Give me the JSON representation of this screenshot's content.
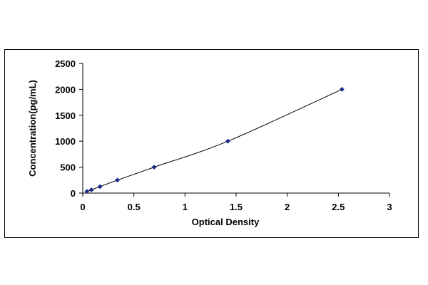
{
  "chart_data": {
    "type": "scatter",
    "title": "",
    "xlabel": "Optical Density",
    "ylabel": "Concentration(pg/mL)",
    "xlim": [
      0,
      3
    ],
    "ylim": [
      0,
      2500
    ],
    "xticks": [
      0,
      0.5,
      1,
      1.5,
      2,
      2.5,
      3
    ],
    "xtick_labels": [
      "0",
      "0.5",
      "1",
      "1.5",
      "2",
      "2.5",
      "3"
    ],
    "yticks": [
      0,
      500,
      1000,
      1500,
      2000,
      2500
    ],
    "ytick_labels": [
      "0",
      "500",
      "1000",
      "1500",
      "2000",
      "2500"
    ],
    "grid": false,
    "legend": "none",
    "series": [
      {
        "x": [
          0.041,
          0.085,
          0.169,
          0.339,
          0.698,
          1.419,
          2.535
        ],
        "y": [
          31.25,
          62.5,
          125,
          250,
          500,
          1000,
          2000
        ],
        "marker_color": "#1f2a8a",
        "fit_line_color": "#000000"
      }
    ]
  }
}
